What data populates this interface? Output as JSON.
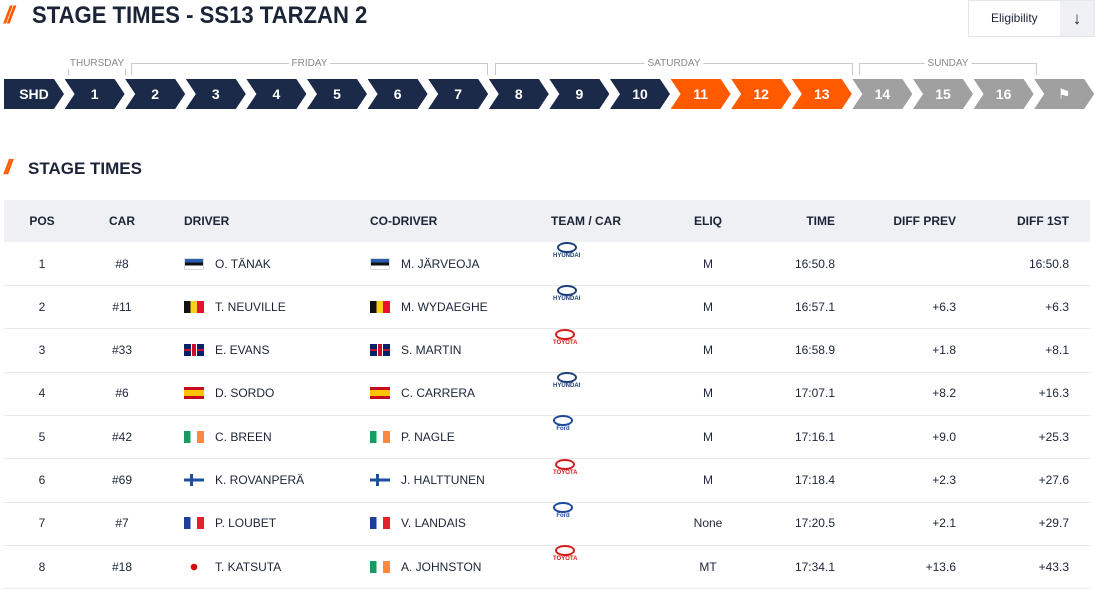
{
  "header": {
    "title": "STAGE TIMES - SS13 TARZAN 2",
    "eligibility": "Eligibility"
  },
  "days": [
    "THURSDAY",
    "FRIDAY",
    "SATURDAY",
    "SUNDAY"
  ],
  "stages": [
    {
      "label": "SHD",
      "color": "#1c2a4a"
    },
    {
      "label": "1",
      "color": "#1c2a4a"
    },
    {
      "label": "2",
      "color": "#1c2a4a"
    },
    {
      "label": "3",
      "color": "#1c2a4a"
    },
    {
      "label": "4",
      "color": "#1c2a4a"
    },
    {
      "label": "5",
      "color": "#1c2a4a"
    },
    {
      "label": "6",
      "color": "#1c2a4a"
    },
    {
      "label": "7",
      "color": "#1c2a4a"
    },
    {
      "label": "8",
      "color": "#1c2a4a"
    },
    {
      "label": "9",
      "color": "#1c2a4a"
    },
    {
      "label": "10",
      "color": "#1c2a4a"
    },
    {
      "label": "11",
      "color": "#ff5a00"
    },
    {
      "label": "12",
      "color": "#ff5a00"
    },
    {
      "label": "13",
      "color": "#ff5a00"
    },
    {
      "label": "14",
      "color": "#a0a0a0"
    },
    {
      "label": "15",
      "color": "#a0a0a0"
    },
    {
      "label": "16",
      "color": "#a0a0a0"
    },
    {
      "color": "#a0a0a0"
    }
  ],
  "section_title": "STAGE TIMES",
  "table": {
    "columns": [
      "POS",
      "CAR",
      "DRIVER",
      "CO-DRIVER",
      "TEAM / CAR",
      "ELIQ",
      "TIME",
      "DIFF PREV",
      "DIFF 1ST"
    ],
    "rows": [
      {
        "pos": "1",
        "car": "#8",
        "driver": "O. TÄNAK",
        "codriver": "M. JÄRVEOJA",
        "team": "HYUNDAI",
        "team_color": "#1c3f7a",
        "elig": "M",
        "time": "16:50.8",
        "diff_prev": null,
        "diff_first": "16:50.8"
      },
      {
        "pos": "2",
        "car": "#11",
        "driver": "T. NEUVILLE",
        "codriver": "M. WYDAEGHE",
        "team": "HYUNDAI",
        "team_color": "#1c3f7a",
        "elig": "M",
        "time": "16:57.1",
        "diff_prev": "+6.3",
        "diff_first": "+6.3"
      },
      {
        "pos": "3",
        "car": "#33",
        "driver": "E. EVANS",
        "codriver": "S. MARTIN",
        "team": "TOYOTA",
        "team_color": "#d41c1c",
        "elig": "M",
        "time": "16:58.9",
        "diff_prev": "+1.8",
        "diff_first": "+8.1"
      },
      {
        "pos": "4",
        "car": "#6",
        "driver": "D. SORDO",
        "codriver": "C. CARRERA",
        "team": "HYUNDAI",
        "team_color": "#1c3f7a",
        "elig": "M",
        "time": "17:07.1",
        "diff_prev": "+8.2",
        "diff_first": "+16.3"
      },
      {
        "pos": "5",
        "car": "#42",
        "driver": "C. BREEN",
        "codriver": "P. NAGLE",
        "team": "Ford",
        "team_color": "#1b4a9c",
        "elig": "M",
        "time": "17:16.1",
        "diff_prev": "+9.0",
        "diff_first": "+25.3"
      },
      {
        "pos": "6",
        "car": "#69",
        "driver": "K. ROVANPERÄ",
        "codriver": "J. HALTTUNEN",
        "team": "TOYOTA",
        "team_color": "#d41c1c",
        "elig": "M",
        "time": "17:18.4",
        "diff_prev": "+2.3",
        "diff_first": "+27.6"
      },
      {
        "pos": "7",
        "car": "#7",
        "driver": "P. LOUBET",
        "codriver": "V. LANDAIS",
        "team": "Ford",
        "team_color": "#1b4a9c",
        "elig": "None",
        "time": "17:20.5",
        "diff_prev": "+2.1",
        "diff_first": "+29.7"
      },
      {
        "pos": "8",
        "car": "#18",
        "driver": "T. KATSUTA",
        "codriver": "A. JOHNSTON",
        "team": "TOYOTA",
        "team_color": "#d41c1c",
        "elig": "MT",
        "time": "17:34.1",
        "diff_prev": "+13.6",
        "diff_first": "+43.3"
      }
    ]
  }
}
